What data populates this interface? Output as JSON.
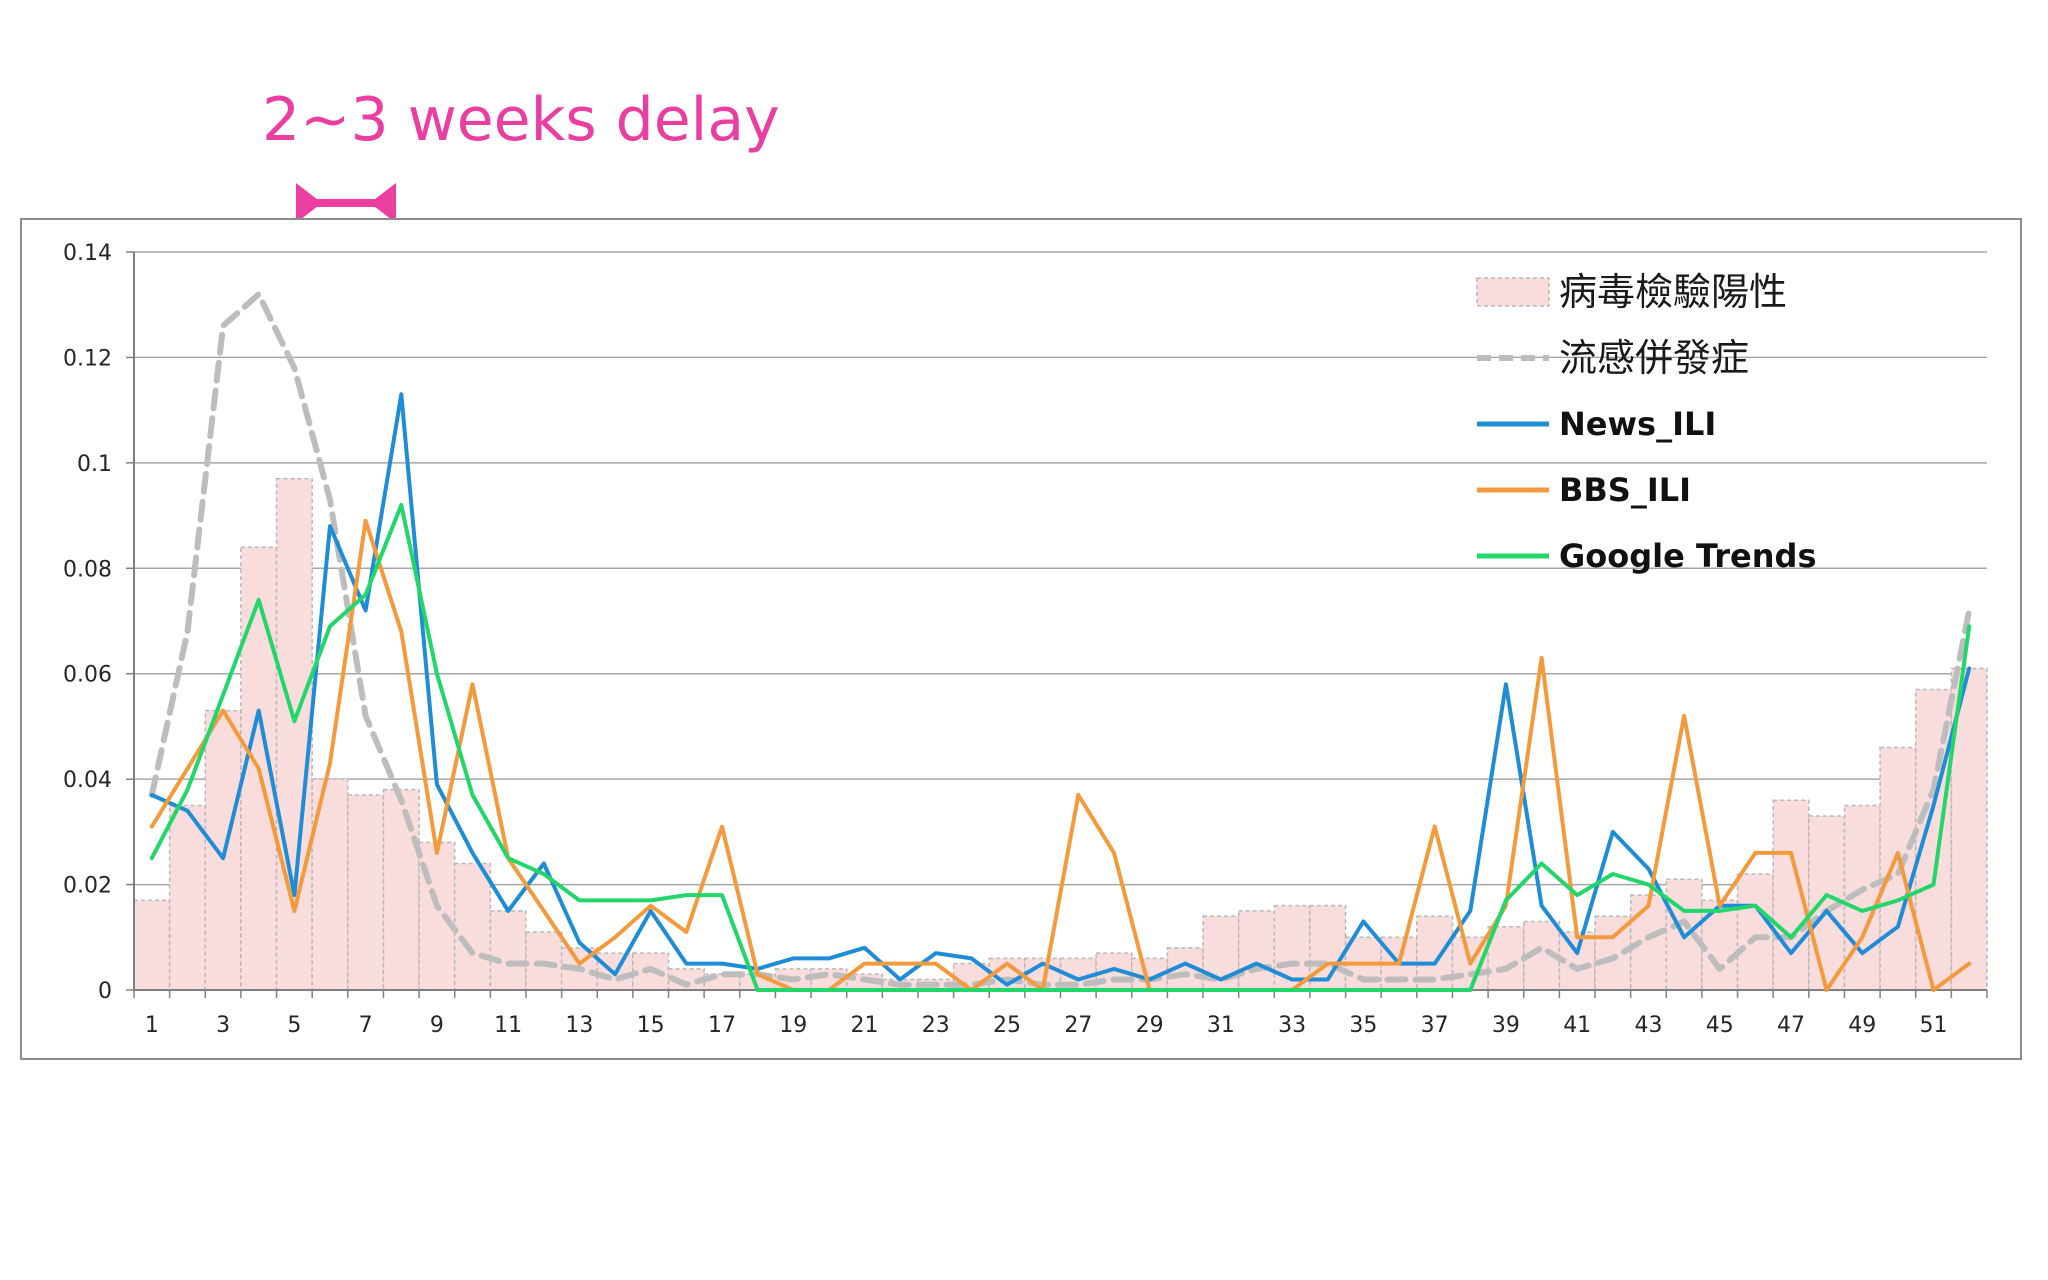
{
  "annotation": {
    "text": "2~3 weeks delay",
    "color": "#ea3ea0",
    "from_week": 5,
    "to_week": 8
  },
  "chart_data": {
    "type": "bar+line",
    "title": "",
    "xlabel": "",
    "ylabel": "",
    "ylim": [
      0,
      0.14
    ],
    "yticks": [
      "0",
      "0.02",
      "0.04",
      "0.06",
      "0.08",
      "0.1",
      "0.12",
      "0.14"
    ],
    "yticks_values": [
      0,
      0.02,
      0.04,
      0.06,
      0.08,
      0.1,
      0.12,
      0.14
    ],
    "x": [
      1,
      2,
      3,
      4,
      5,
      6,
      7,
      8,
      9,
      10,
      11,
      12,
      13,
      14,
      15,
      16,
      17,
      18,
      19,
      20,
      21,
      22,
      23,
      24,
      25,
      26,
      27,
      28,
      29,
      30,
      31,
      32,
      33,
      34,
      35,
      36,
      37,
      38,
      39,
      40,
      41,
      42,
      43,
      44,
      45,
      46,
      47,
      48,
      49,
      50,
      51,
      52
    ],
    "xticks": [
      "1",
      "3",
      "5",
      "7",
      "9",
      "11",
      "13",
      "15",
      "17",
      "19",
      "21",
      "23",
      "25",
      "27",
      "29",
      "31",
      "33",
      "35",
      "37",
      "39",
      "41",
      "43",
      "45",
      "47",
      "49",
      "51"
    ],
    "grid": "horizontal",
    "legend_position": "top-right",
    "series": [
      {
        "name": "病毒檢驗陽性",
        "kind": "bar",
        "color": "#f9dcdc",
        "edge_color": "#b8b8b8",
        "values": [
          0.017,
          0.035,
          0.053,
          0.084,
          0.097,
          0.04,
          0.037,
          0.038,
          0.028,
          0.024,
          0.015,
          0.011,
          0.008,
          0.007,
          0.007,
          0.004,
          0.003,
          0.003,
          0.004,
          0.004,
          0.003,
          0.002,
          0.002,
          0.005,
          0.006,
          0.006,
          0.006,
          0.007,
          0.006,
          0.008,
          0.014,
          0.015,
          0.016,
          0.016,
          0.01,
          0.01,
          0.014,
          0.01,
          0.012,
          0.013,
          0.011,
          0.014,
          0.018,
          0.021,
          0.017,
          0.022,
          0.036,
          0.033,
          0.035,
          0.046,
          0.057,
          0.061
        ]
      },
      {
        "name": "流感併發症",
        "kind": "dashed-line",
        "color": "#bdbdbd",
        "values": [
          0.037,
          0.068,
          0.126,
          0.132,
          0.118,
          0.093,
          0.052,
          0.036,
          0.016,
          0.007,
          0.005,
          0.005,
          0.004,
          0.002,
          0.004,
          0.001,
          0.003,
          0.003,
          0.002,
          0.003,
          0.002,
          0.001,
          0.001,
          0.001,
          0.002,
          0.001,
          0.001,
          0.002,
          0.002,
          0.003,
          0.002,
          0.004,
          0.005,
          0.005,
          0.002,
          0.002,
          0.002,
          0.003,
          0.004,
          0.008,
          0.004,
          0.006,
          0.01,
          0.013,
          0.004,
          0.01,
          0.01,
          0.015,
          0.019,
          0.022,
          0.038,
          0.072
        ]
      },
      {
        "name": "News_ILI",
        "kind": "line",
        "color": "#1f8dd6",
        "values": [
          0.037,
          0.034,
          0.025,
          0.053,
          0.018,
          0.088,
          0.072,
          0.113,
          0.039,
          0.026,
          0.015,
          0.024,
          0.009,
          0.003,
          0.015,
          0.005,
          0.005,
          0.004,
          0.006,
          0.006,
          0.008,
          0.002,
          0.007,
          0.006,
          0.001,
          0.005,
          0.002,
          0.004,
          0.002,
          0.005,
          0.002,
          0.005,
          0.002,
          0.002,
          0.013,
          0.005,
          0.005,
          0.015,
          0.058,
          0.016,
          0.007,
          0.03,
          0.023,
          0.01,
          0.016,
          0.016,
          0.007,
          0.015,
          0.007,
          0.012,
          0.035,
          0.061
        ]
      },
      {
        "name": "BBS_ILI",
        "kind": "line",
        "color": "#f39a3c",
        "values": [
          0.031,
          0.042,
          0.053,
          0.042,
          0.015,
          0.043,
          0.089,
          0.068,
          0.026,
          0.058,
          0.025,
          0.015,
          0.005,
          0.01,
          0.016,
          0.011,
          0.031,
          0.003,
          0.0,
          0.0,
          0.005,
          0.005,
          0.005,
          0.0,
          0.005,
          0.0,
          0.037,
          0.026,
          0.0,
          0.0,
          0.0,
          0.0,
          0.0,
          0.005,
          0.005,
          0.005,
          0.031,
          0.005,
          0.016,
          0.063,
          0.01,
          0.01,
          0.016,
          0.052,
          0.016,
          0.026,
          0.026,
          0.0,
          0.01,
          0.026,
          0.0,
          0.005
        ]
      },
      {
        "name": "Google Trends",
        "kind": "line",
        "color": "#22d66a",
        "values": [
          0.025,
          0.038,
          0.056,
          0.074,
          0.051,
          0.069,
          0.075,
          0.092,
          0.06,
          0.037,
          0.025,
          0.022,
          0.017,
          0.017,
          0.017,
          0.018,
          0.018,
          0.0,
          0.0,
          0.0,
          0.0,
          0.0,
          0.0,
          0.0,
          0.0,
          0.0,
          0.0,
          0.0,
          0.0,
          0.0,
          0.0,
          0.0,
          0.0,
          0.0,
          0.0,
          0.0,
          0.0,
          0.0,
          0.017,
          0.024,
          0.018,
          0.022,
          0.02,
          0.015,
          0.015,
          0.016,
          0.01,
          0.018,
          0.015,
          0.017,
          0.02,
          0.069
        ]
      }
    ]
  }
}
